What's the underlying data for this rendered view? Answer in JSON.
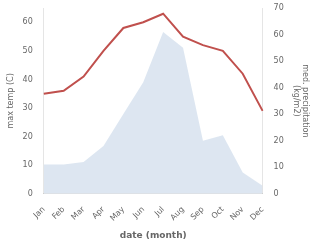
{
  "chart_data": {
    "type": "line",
    "categories": [
      "Jan",
      "Feb",
      "Mar",
      "Apr",
      "May",
      "Jun",
      "Jul",
      "Aug",
      "Sep",
      "Oct",
      "Nov",
      "Dec"
    ],
    "xlabel": "date (month)",
    "ylabel": "max temp (C)",
    "y2label": "med. precipitation\n(kg/m2)",
    "series": [
      {
        "type": "area",
        "axis": "y2",
        "color": "#c6d5e8",
        "values": [
          11,
          11,
          12,
          18,
          30,
          42,
          61,
          55,
          20,
          22,
          8,
          3
        ]
      },
      {
        "type": "line",
        "color": "#c0504d",
        "values": [
          35,
          36,
          41,
          50,
          58,
          60,
          63,
          55,
          52,
          50,
          42,
          29
        ]
      }
    ],
    "ylim": [
      0,
      65
    ],
    "yticks": [
      0,
      10,
      20,
      30,
      40,
      50,
      60
    ],
    "y2lim": [
      0,
      70
    ],
    "y2ticks": [
      0,
      10,
      20,
      30,
      40,
      50,
      60,
      70
    ],
    "grid": false
  }
}
